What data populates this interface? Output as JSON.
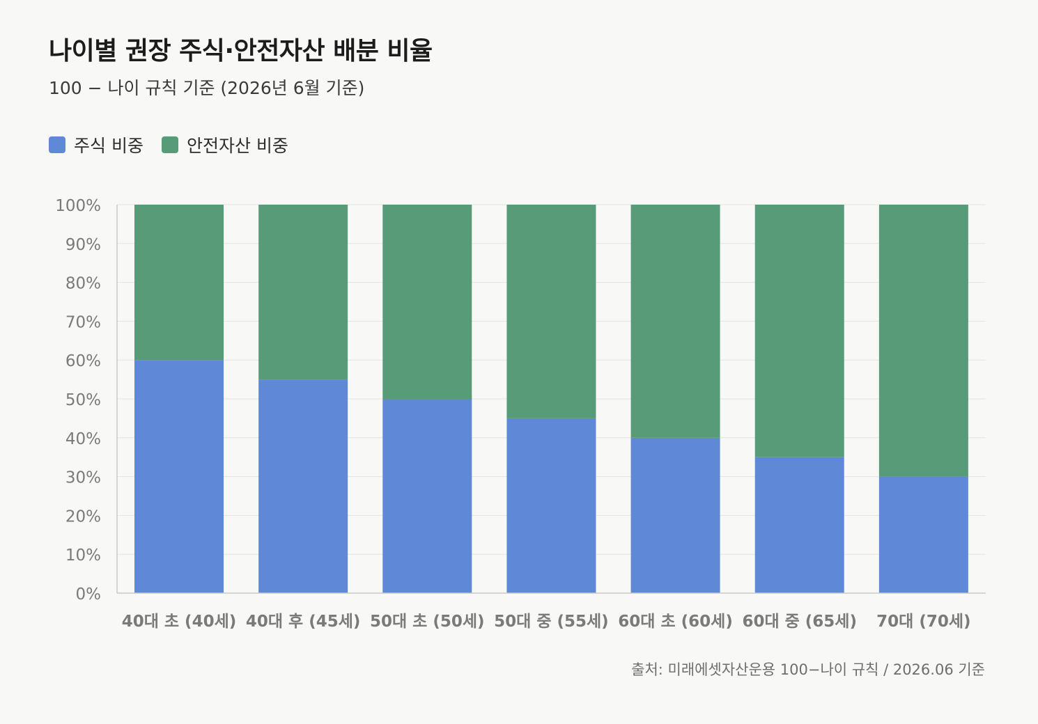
{
  "title": "나이별 권장 주식·안전자산 배분 비율",
  "subtitle": "100 − 나이 규칙 기준 (2026년 6월 기준)",
  "legend": {
    "stock_label": "주식 비중",
    "safe_label": "안전자산 비중"
  },
  "colors": {
    "stock": "#5f88d6",
    "safe": "#579b78",
    "grid": "#e3e3e1",
    "axis": "#c9c9c7"
  },
  "source": "출처: 미래에셋자산운용 100−나이 규칙 / 2026.06 기준",
  "chart_data": {
    "type": "bar",
    "stacked": true,
    "categories": [
      "40대 초 (40세)",
      "40대 후 (45세)",
      "50대 초 (50세)",
      "50대 중 (55세)",
      "60대 초 (60세)",
      "60대 중 (65세)",
      "70대 (70세)"
    ],
    "series": [
      {
        "name": "주식 비중",
        "values": [
          60,
          55,
          50,
          45,
          40,
          35,
          30
        ]
      },
      {
        "name": "안전자산 비중",
        "values": [
          40,
          45,
          50,
          55,
          60,
          65,
          70
        ]
      }
    ],
    "ylim": [
      0,
      100
    ],
    "yticks": [
      "0%",
      "10%",
      "20%",
      "30%",
      "40%",
      "50%",
      "60%",
      "70%",
      "80%",
      "90%",
      "100%"
    ],
    "grid": true,
    "legend_position": "top-left"
  }
}
